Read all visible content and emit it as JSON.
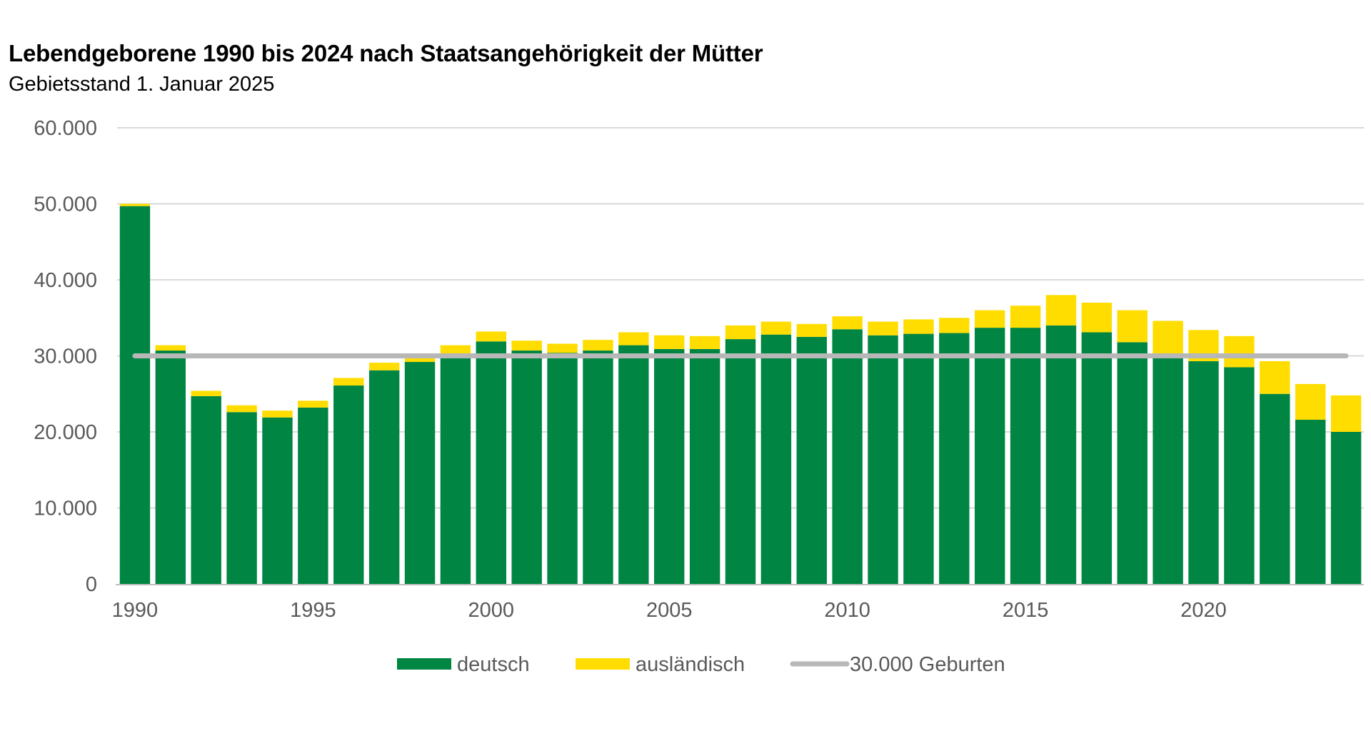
{
  "chart_data": {
    "type": "bar",
    "stacked": true,
    "title": "Lebendgeborene 1990 bis 2024 nach Staatsangehörigkeit der Mütter",
    "subtitle": "Gebietsstand 1. Januar 2025",
    "xlabel": "",
    "ylabel": "",
    "ylim": [
      0,
      60000
    ],
    "yticks": [
      0,
      10000,
      20000,
      30000,
      40000,
      50000,
      60000
    ],
    "ytick_labels": [
      "0",
      "10.000",
      "20.000",
      "30.000",
      "40.000",
      "50.000",
      "60.000"
    ],
    "categories": [
      "1990",
      "1991",
      "1992",
      "1993",
      "1994",
      "1995",
      "1996",
      "1997",
      "1998",
      "1999",
      "2000",
      "2001",
      "2002",
      "2003",
      "2004",
      "2005",
      "2006",
      "2007",
      "2008",
      "2009",
      "2010",
      "2011",
      "2012",
      "2013",
      "2014",
      "2015",
      "2016",
      "2017",
      "2018",
      "2019",
      "2020",
      "2021",
      "2022",
      "2023",
      "2024"
    ],
    "xtick_labels": [
      "1990",
      "1995",
      "2000",
      "2005",
      "2010",
      "2015",
      "2020"
    ],
    "series": [
      {
        "name": "deutsch",
        "color": "#008542",
        "values": [
          49700,
          30700,
          24700,
          22600,
          21900,
          23200,
          26100,
          28100,
          29200,
          29900,
          31900,
          30700,
          30400,
          30700,
          31400,
          30900,
          30900,
          32200,
          32800,
          32500,
          33500,
          32700,
          32900,
          33000,
          33700,
          33700,
          34000,
          33100,
          31800,
          30000,
          29300,
          28500,
          25000,
          21600,
          20000
        ]
      },
      {
        "name": "ausländisch",
        "color": "#ffdd00",
        "values": [
          300,
          700,
          700,
          900,
          900,
          900,
          1000,
          1000,
          600,
          1500,
          1300,
          1300,
          1200,
          1400,
          1700,
          1800,
          1700,
          1800,
          1700,
          1700,
          1700,
          1800,
          1900,
          2000,
          2300,
          2900,
          4000,
          3900,
          4200,
          4600,
          4100,
          4100,
          4300,
          4700,
          4800
        ]
      }
    ],
    "reference_line": {
      "label": "30.000 Geburten",
      "value": 30000,
      "color": "#b7b7b7"
    },
    "legend": {
      "position": "bottom-center",
      "entries": [
        "deutsch",
        "ausländisch",
        "30.000 Geburten"
      ]
    },
    "grid": true,
    "grid_color": "#d9d9d9",
    "axis_color": "#bfbfbf"
  }
}
